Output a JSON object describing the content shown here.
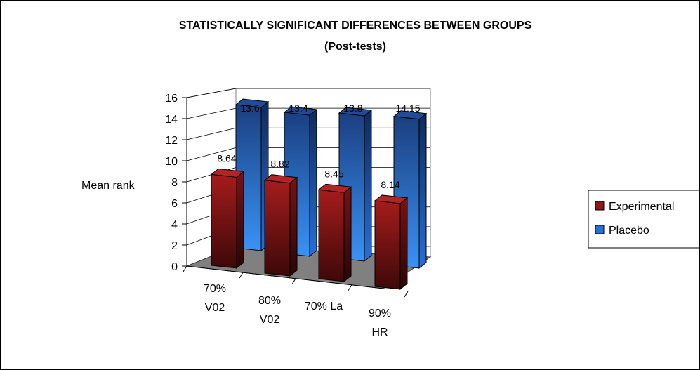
{
  "chart_data": {
    "type": "bar",
    "title": "STATISTICALLY SIGNIFICANT DIFFERENCES BETWEEN GROUPS",
    "subtitle": "(Post-tests)",
    "ylabel": "Mean rank",
    "xlabel": "",
    "ylim": [
      0,
      16
    ],
    "yticks": [
      "0",
      "2",
      "4",
      "6",
      "8",
      "10",
      "12",
      "14",
      "16"
    ],
    "categories": [
      [
        "70%",
        "V02"
      ],
      [
        "80%",
        "V02"
      ],
      [
        "70% La"
      ],
      [
        "90%",
        "HR"
      ]
    ],
    "series": [
      {
        "name": "Experimental",
        "values": [
          8.64,
          8.82,
          8.45,
          8.14
        ],
        "labels": [
          "8.64",
          "8.82",
          "8.45",
          "8.14"
        ],
        "color": "#8b1a1a"
      },
      {
        "name": "Placebo",
        "values": [
          13.6,
          13.4,
          13.8,
          14.15
        ],
        "labels": [
          "13.6",
          "13.4",
          "13.8",
          "14.15"
        ],
        "color": "#2a6fd6"
      }
    ],
    "grid": true,
    "legend": "right",
    "style": "3d-column"
  }
}
